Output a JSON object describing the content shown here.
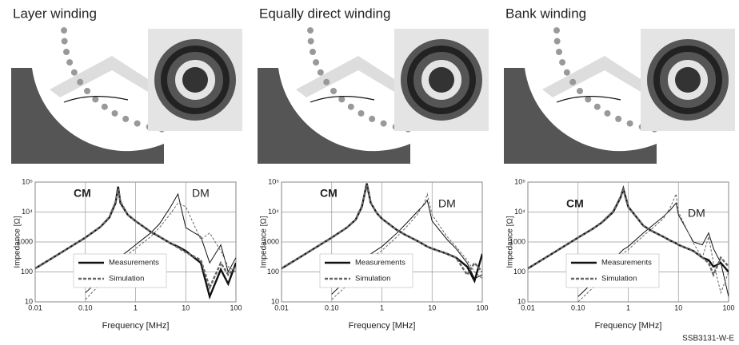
{
  "chart_data": [
    {
      "type": "line",
      "title": "Layer winding",
      "xlabel": "Frequency [MHz]",
      "ylabel": "Impedance [Ω]",
      "log_x": true,
      "log_y": true,
      "grid": true,
      "annotations": [
        "CM",
        "DM"
      ],
      "xlim": [
        0.01,
        100
      ],
      "ylim": [
        10,
        100000
      ],
      "xticks": [
        0.01,
        {
          "value": 0.1,
          "label": "0.10"
        },
        1,
        10,
        100
      ],
      "yticks": [
        10,
        100,
        1000,
        {
          "value": 10000,
          "label": "10⁴"
        },
        {
          "value": 100000,
          "label": "10⁵"
        }
      ],
      "x": [
        0.01,
        0.03,
        0.1,
        0.2,
        0.3,
        0.4,
        0.45,
        0.5,
        0.7,
        1,
        2,
        3,
        5,
        7,
        10,
        20,
        30,
        50,
        70,
        100
      ],
      "series": [
        {
          "name": "Measurements",
          "color": "#111111",
          "dashed": false,
          "values": [
            130,
            400,
            1400,
            3200,
            6500,
            20000,
            70000,
            20000,
            8000,
            5000,
            2200,
            1500,
            900,
            700,
            500,
            200,
            15,
            120,
            40,
            200
          ]
        },
        {
          "name": "Simulation",
          "color": "#666666",
          "dashed": true,
          "values": [
            130,
            400,
            1400,
            3200,
            6800,
            22000,
            60000,
            22000,
            8000,
            5000,
            2200,
            1500,
            900,
            650,
            450,
            250,
            30,
            200,
            80,
            150
          ]
        }
      ],
      "dm_series": [
        {
          "color": "#111111",
          "dashed": false,
          "values": [
            null,
            null,
            20,
            60,
            130,
            220,
            280,
            330,
            500,
            800,
            2000,
            4000,
            15000,
            40000,
            3000,
            1500,
            200,
            800,
            100,
            300
          ]
        },
        {
          "color": "#666666",
          "dashed": true,
          "values": [
            null,
            null,
            12,
            40,
            90,
            160,
            200,
            240,
            380,
            600,
            1500,
            3000,
            9000,
            20000,
            15000,
            1200,
            2000,
            500,
            150,
            100
          ]
        }
      ]
    },
    {
      "type": "line",
      "title": "Equally direct winding",
      "xlabel": "Frequency [MHz]",
      "ylabel": "Impedance [Ω]",
      "log_x": true,
      "log_y": true,
      "grid": true,
      "annotations": [
        "CM",
        "DM"
      ],
      "xlim": [
        0.01,
        100
      ],
      "ylim": [
        10,
        100000
      ],
      "xticks": [
        0.01,
        {
          "value": 0.1,
          "label": "0.10"
        },
        1,
        10,
        100
      ],
      "yticks": [
        10,
        100,
        1000,
        {
          "value": 10000,
          "label": "10⁴"
        },
        {
          "value": 100000,
          "label": "10⁵"
        }
      ],
      "x": [
        0.01,
        0.03,
        0.1,
        0.2,
        0.3,
        0.4,
        0.5,
        0.6,
        0.8,
        1,
        2,
        3,
        5,
        7,
        8,
        10,
        20,
        30,
        50,
        70,
        100
      ],
      "series": [
        {
          "name": "Measurements",
          "color": "#111111",
          "dashed": false,
          "values": [
            130,
            400,
            1400,
            3000,
            5500,
            15000,
            90000,
            20000,
            9000,
            6000,
            2500,
            1700,
            1100,
            800,
            700,
            600,
            400,
            300,
            150,
            50,
            400
          ]
        },
        {
          "name": "Simulation",
          "color": "#666666",
          "dashed": true,
          "values": [
            130,
            400,
            1400,
            3000,
            5600,
            16000,
            80000,
            20000,
            9000,
            6000,
            2500,
            1700,
            1100,
            800,
            700,
            600,
            400,
            300,
            80,
            200,
            100
          ]
        }
      ],
      "dm_series": [
        {
          "color": "#111111",
          "dashed": false,
          "values": [
            null,
            null,
            18,
            55,
            120,
            200,
            300,
            400,
            550,
            700,
            2000,
            4000,
            10000,
            18000,
            25000,
            5000,
            1200,
            600,
            200,
            60,
            80
          ]
        },
        {
          "color": "#666666",
          "dashed": true,
          "values": [
            null,
            null,
            12,
            35,
            80,
            140,
            210,
            280,
            400,
            520,
            1500,
            3000,
            8000,
            20000,
            40000,
            8000,
            1500,
            700,
            250,
            100,
            60
          ]
        }
      ]
    },
    {
      "type": "line",
      "title": "Bank winding",
      "xlabel": "Frequency [MHz]",
      "ylabel": "Impedance [Ω]",
      "log_x": true,
      "log_y": true,
      "grid": true,
      "annotations": [
        "CM",
        "DM"
      ],
      "xlim": [
        0.01,
        100
      ],
      "ylim": [
        10,
        100000
      ],
      "xticks": [
        0.01,
        {
          "value": 0.1,
          "label": "0.10"
        },
        1,
        10,
        100
      ],
      "yticks": [
        10,
        100,
        1000,
        {
          "value": 10000,
          "label": "10⁴"
        },
        {
          "value": 100000,
          "label": "10⁵"
        }
      ],
      "x": [
        0.01,
        0.03,
        0.1,
        0.2,
        0.3,
        0.5,
        0.7,
        0.8,
        1,
        2,
        3,
        5,
        7,
        9,
        10,
        20,
        30,
        40,
        50,
        70,
        100
      ],
      "series": [
        {
          "name": "Measurements",
          "color": "#111111",
          "dashed": false,
          "values": [
            130,
            400,
            1400,
            2800,
            4500,
            10000,
            30000,
            60000,
            15000,
            3500,
            2300,
            1500,
            1100,
            900,
            800,
            500,
            300,
            250,
            150,
            200,
            100
          ]
        },
        {
          "name": "Simulation",
          "color": "#666666",
          "dashed": true,
          "values": [
            130,
            400,
            1400,
            2800,
            4600,
            10500,
            32000,
            55000,
            15000,
            3500,
            2300,
            1500,
            1100,
            900,
            800,
            500,
            300,
            200,
            80,
            300,
            150
          ]
        }
      ],
      "dm_series": [
        {
          "color": "#111111",
          "dashed": false,
          "values": [
            null,
            null,
            15,
            45,
            100,
            250,
            450,
            560,
            700,
            2000,
            3500,
            7000,
            12000,
            20000,
            8000,
            1000,
            800,
            2000,
            600,
            200,
            15
          ]
        },
        {
          "color": "#666666",
          "dashed": true,
          "values": [
            null,
            null,
            10,
            30,
            70,
            180,
            330,
            420,
            550,
            1600,
            2800,
            6000,
            15000,
            40000,
            10000,
            900,
            300,
            1500,
            200,
            20,
            100
          ]
        }
      ]
    }
  ],
  "footer": "SSB3131-W-E"
}
